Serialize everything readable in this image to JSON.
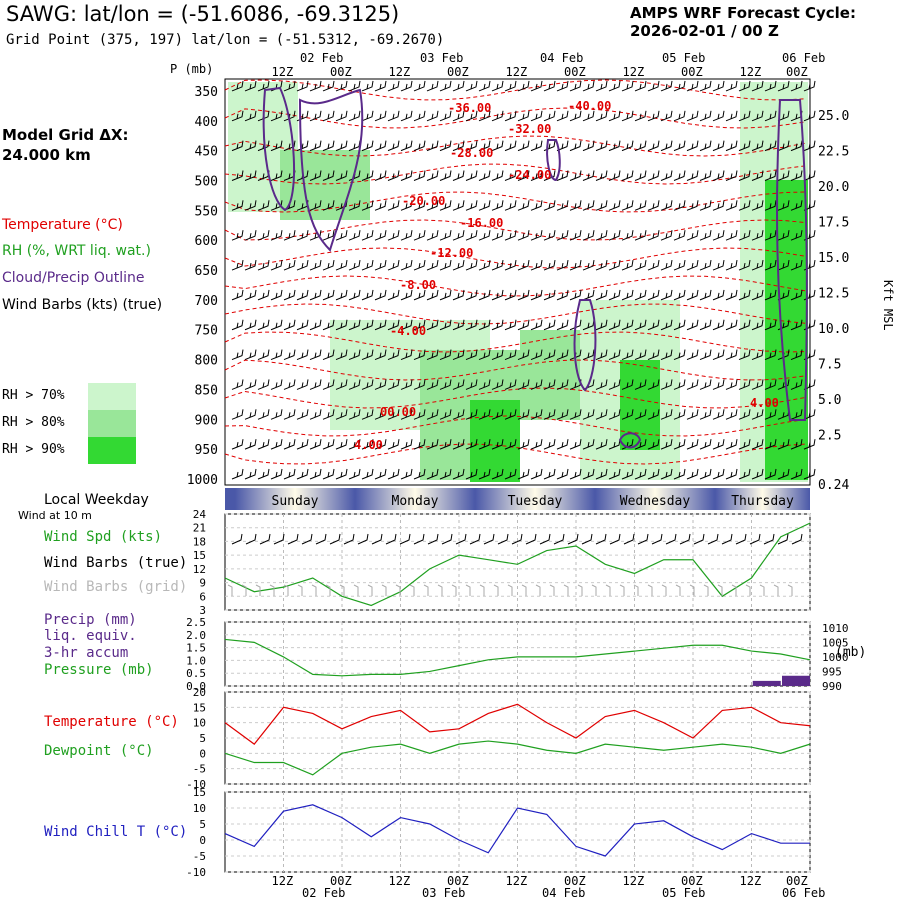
{
  "header": {
    "title": "SAWG:  lat/lon = (-51.6086, -69.3125)",
    "subtitle": "Grid Point (375, 197) lat/lon = (-51.5312, -69.2670)",
    "cycle_line1": "AMPS WRF Forecast Cycle:",
    "cycle_line2": "2026-02-01 / 00  Z"
  },
  "grid": {
    "line1": "Model Grid ΔX:",
    "line2": " 24.000 km"
  },
  "legend": {
    "temperature": "Temperature (°C)",
    "rh": "RH (%, WRT liq. wat.)",
    "cloud": "Cloud/Precip Outline",
    "wind": "Wind Barbs (kts) (true)",
    "rh70": "RH > 70%",
    "rh80": "RH > 80%",
    "rh90": "RH > 90%",
    "colors": {
      "temp": "#e00000",
      "rh": "#20a020",
      "cloud": "#5a2a8a",
      "rh70": "#ccf5cc",
      "rh80": "#99e699",
      "rh90": "#33d933"
    }
  },
  "time_axis": {
    "top_dates": [
      "02 Feb",
      "03 Feb",
      "04 Feb",
      "05 Feb",
      "06 Feb"
    ],
    "ticks": [
      "12Z",
      "00Z",
      "12Z",
      "00Z",
      "12Z",
      "00Z",
      "12Z",
      "00Z",
      "12Z",
      "00Z"
    ],
    "weekdays": [
      "Sunday",
      "Monday",
      "Tuesday",
      "Wednesday",
      "Thursday"
    ]
  },
  "labels": {
    "pressure": "P (mb)",
    "kft": "Kft MSL",
    "local_weekday": "Local Weekday",
    "wind_10m": "Wind at 10 m",
    "wind_spd": "Wind Spd (kts)",
    "wind_true": "Wind Barbs (true)",
    "wind_grid": "Wind Barbs (grid)",
    "precip1": "Precip (mm)",
    "precip2": "liq. equiv.",
    "precip3": "3-hr accum",
    "pressure_lbl": "Pressure (mb)",
    "mb": "(mb)",
    "temp": "Temperature (°C)",
    "dewpoint": "Dewpoint (°C)",
    "windchill": "Wind Chill T (°C)"
  },
  "chart_data": [
    {
      "type": "heatmap",
      "pressure_levels": [
        350,
        400,
        450,
        500,
        550,
        600,
        650,
        700,
        750,
        800,
        850,
        900,
        950,
        1000
      ],
      "height_ticks": [
        "25.0",
        "22.5",
        "20.0",
        "17.5",
        "15.0",
        "12.5",
        "10.0",
        "7.5",
        "5.0",
        "2.5",
        "0.24"
      ],
      "temperature_contours": [
        "-36.00",
        "-40.00",
        "-32.00",
        "-28.00",
        "-24.00",
        "-20.00",
        "-16.00",
        "-12.00",
        "-8.00",
        "-4.00",
        "00.00",
        "4.00",
        "4.00"
      ]
    },
    {
      "type": "line",
      "name": "Wind Spd (kts)",
      "ylim": [
        3,
        24
      ],
      "yticks": [
        3,
        6,
        9,
        12,
        15,
        18,
        21,
        24
      ],
      "x_hours": [
        0,
        6,
        12,
        18,
        24,
        30,
        36,
        42,
        48,
        54,
        60,
        66,
        72,
        78,
        84,
        90,
        96,
        102,
        108,
        114,
        120
      ],
      "values": [
        10,
        7,
        8,
        10,
        6,
        4,
        7,
        12,
        15,
        14,
        13,
        16,
        17,
        13,
        11,
        14,
        14,
        6,
        10,
        19,
        22
      ]
    },
    {
      "type": "line",
      "name": "Pressure (mb)",
      "ylim": [
        990,
        1012
      ],
      "yticks_left": [
        "0.0",
        "0.5",
        "1.0",
        "1.5",
        "2.0",
        "2.5"
      ],
      "yticks_right": [
        990,
        995,
        1000,
        1005,
        1010
      ],
      "x_hours": [
        0,
        6,
        12,
        18,
        24,
        30,
        36,
        42,
        48,
        54,
        60,
        66,
        72,
        78,
        84,
        90,
        96,
        102,
        108,
        114,
        120
      ],
      "values": [
        1006,
        1005,
        1000,
        994,
        993.5,
        994,
        994,
        995,
        997,
        999,
        1000,
        1000,
        1000,
        1001,
        1002,
        1003,
        1004,
        1004,
        1002,
        1001,
        999
      ],
      "precip_mm": [
        0,
        0,
        0,
        0,
        0,
        0,
        0,
        0,
        0,
        0,
        0,
        0,
        0,
        0,
        0,
        0,
        0,
        0,
        0,
        0.2,
        0.4
      ]
    },
    {
      "type": "line",
      "ylim": [
        -10,
        20
      ],
      "yticks": [
        -10,
        -5,
        0,
        5,
        10,
        15,
        20
      ],
      "x_hours": [
        0,
        6,
        12,
        18,
        24,
        30,
        36,
        42,
        48,
        54,
        60,
        66,
        72,
        78,
        84,
        90,
        96,
        102,
        108,
        114,
        120
      ],
      "series": [
        {
          "name": "Temperature (°C)",
          "values": [
            10,
            3,
            15,
            13,
            8,
            12,
            14,
            7,
            8,
            13,
            16,
            10,
            5,
            12,
            14,
            10,
            5,
            14,
            15,
            10,
            9
          ]
        },
        {
          "name": "Dewpoint (°C)",
          "values": [
            0,
            -3,
            -3,
            -7,
            0,
            2,
            3,
            0,
            3,
            4,
            3,
            1,
            0,
            3,
            2,
            1,
            2,
            3,
            2,
            0,
            3
          ]
        }
      ]
    },
    {
      "type": "line",
      "name": "Wind Chill T (°C)",
      "ylim": [
        -10,
        15
      ],
      "yticks": [
        -10,
        -5,
        0,
        5,
        10,
        15
      ],
      "x_hours": [
        0,
        6,
        12,
        18,
        24,
        30,
        36,
        42,
        48,
        54,
        60,
        66,
        72,
        78,
        84,
        90,
        96,
        102,
        108,
        114,
        120
      ],
      "values": [
        2,
        -2,
        9,
        11,
        7,
        1,
        7,
        5,
        0,
        -4,
        10,
        8,
        -2,
        -5,
        5,
        6,
        1,
        -3,
        2,
        -1,
        -1
      ]
    }
  ]
}
